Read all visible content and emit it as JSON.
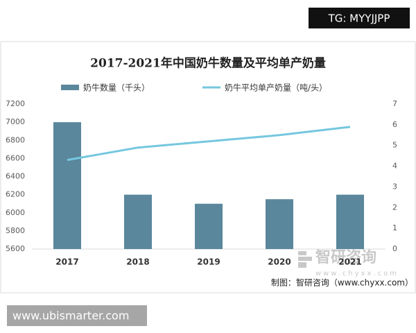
{
  "tag": "TG: MYYJJPP",
  "site": "www.ubismarter.com",
  "watermark": {
    "name": "智研咨询",
    "url": "www.chyxx.com"
  },
  "source": "制图：智研咨询（www.chyxx.com）",
  "chart_data": {
    "type": "bar",
    "title": "2017-2021年中国奶牛数量及平均单产奶量",
    "categories": [
      "2017",
      "2018",
      "2019",
      "2020",
      "2021"
    ],
    "series": [
      {
        "name": "奶牛数量（千头）",
        "type": "bar",
        "color": "#5a879c",
        "values": [
          7000,
          6200,
          6100,
          6150,
          6200
        ]
      },
      {
        "name": "奶牛平均单产奶量（吨/头）",
        "type": "line",
        "axis": "y2",
        "color": "#74c7df",
        "values": [
          4.3,
          4.9,
          5.2,
          5.5,
          5.9
        ]
      }
    ],
    "ylim": [
      5600,
      7200
    ],
    "yticks": [
      5600,
      5800,
      6000,
      6200,
      6400,
      6600,
      6800,
      7000,
      7200
    ],
    "y2lim": [
      0,
      7
    ],
    "y2ticks": [
      0,
      1,
      2,
      3,
      4,
      5,
      6,
      7
    ],
    "grid": false
  }
}
